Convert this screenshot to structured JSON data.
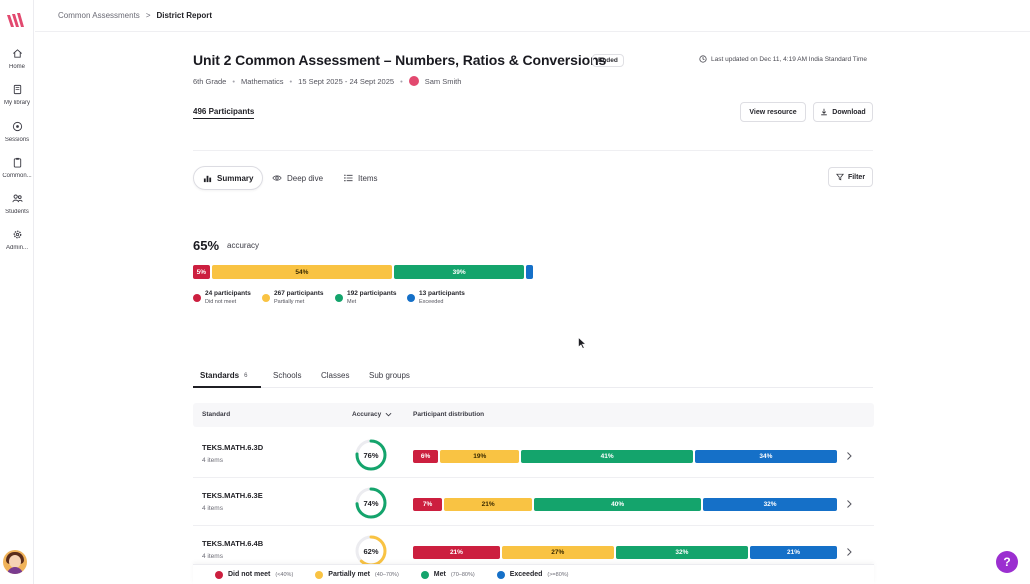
{
  "colors": {
    "did_not_meet": "#cc1f3f",
    "partially_met": "#f9c343",
    "met": "#14a46c",
    "exceeded": "#1570c8",
    "brand": "#e2496f",
    "help": "#9b2fd0"
  },
  "sidebar": {
    "items": [
      {
        "label": "Home",
        "icon": "home-icon"
      },
      {
        "label": "My library",
        "icon": "library-icon"
      },
      {
        "label": "Sessions",
        "icon": "sessions-icon"
      },
      {
        "label": "Common...",
        "icon": "clipboard-icon"
      },
      {
        "label": "Students",
        "icon": "students-icon"
      },
      {
        "label": "Admin...",
        "icon": "gear-icon"
      }
    ]
  },
  "breadcrumb": {
    "parent": "Common Assessments",
    "separator": ">",
    "current": "District Report"
  },
  "header": {
    "title": "Unit 2 Common Assessment – Numbers, Ratios & Conversions",
    "status": "Ended",
    "last_updated": "Last updated on Dec 11, 4:19 AM India Standard Time",
    "grade": "6th Grade",
    "subject": "Mathematics",
    "dates": "15 Sept 2025 - 24 Sept 2025",
    "teacher": "Sam Smith",
    "participants": "496 Participants",
    "view_resource": "View resource",
    "download": "Download"
  },
  "tabs": {
    "summary": "Summary",
    "deep_dive": "Deep dive",
    "items": "Items",
    "filter": "Filter"
  },
  "accuracy": {
    "value": "65%",
    "label": "accuracy",
    "segments": [
      {
        "key": "did_not_meet",
        "pct": 5,
        "label": "5%"
      },
      {
        "key": "partially_met",
        "pct": 54,
        "label": "54%"
      },
      {
        "key": "met",
        "pct": 39,
        "label": "39%"
      },
      {
        "key": "exceeded",
        "pct": 2,
        "label": ""
      }
    ],
    "legend": [
      {
        "key": "did_not_meet",
        "count": "24 participants",
        "name": "Did not meet"
      },
      {
        "key": "partially_met",
        "count": "267 participants",
        "name": "Partially met"
      },
      {
        "key": "met",
        "count": "192 participants",
        "name": "Met"
      },
      {
        "key": "exceeded",
        "count": "13 participants",
        "name": "Exceeded"
      }
    ]
  },
  "breakdown_tabs": {
    "standards": "Standards",
    "standards_count": "6",
    "schools": "Schools",
    "classes": "Classes",
    "sub_groups": "Sub groups"
  },
  "table": {
    "col_standard": "Standard",
    "col_accuracy": "Accuracy",
    "col_distribution": "Participant distribution",
    "rows": [
      {
        "standard": "TEKS.MATH.6.3D",
        "items": "4 items",
        "accuracy": 76,
        "accuracy_label": "76%",
        "ring_color": "#14a46c",
        "segments": [
          {
            "key": "did_not_meet",
            "pct": 6,
            "label": "6%"
          },
          {
            "key": "partially_met",
            "pct": 19,
            "label": "19%"
          },
          {
            "key": "met",
            "pct": 41,
            "label": "41%"
          },
          {
            "key": "exceeded",
            "pct": 34,
            "label": "34%"
          }
        ]
      },
      {
        "standard": "TEKS.MATH.6.3E",
        "items": "4 items",
        "accuracy": 74,
        "accuracy_label": "74%",
        "ring_color": "#14a46c",
        "segments": [
          {
            "key": "did_not_meet",
            "pct": 7,
            "label": "7%"
          },
          {
            "key": "partially_met",
            "pct": 21,
            "label": "21%"
          },
          {
            "key": "met",
            "pct": 40,
            "label": "40%"
          },
          {
            "key": "exceeded",
            "pct": 32,
            "label": "32%"
          }
        ]
      },
      {
        "standard": "TEKS.MATH.6.4B",
        "items": "4 items",
        "accuracy": 62,
        "accuracy_label": "62%",
        "ring_color": "#f9c343",
        "segments": [
          {
            "key": "did_not_meet",
            "pct": 21,
            "label": "21%"
          },
          {
            "key": "partially_met",
            "pct": 27,
            "label": "27%"
          },
          {
            "key": "met",
            "pct": 32,
            "label": "32%"
          },
          {
            "key": "exceeded",
            "pct": 21,
            "label": "21%"
          }
        ]
      }
    ]
  },
  "footer_legend": [
    {
      "key": "did_not_meet",
      "name": "Did not meet",
      "range": "(<40%)"
    },
    {
      "key": "partially_met",
      "name": "Partially met",
      "range": "(40–70%)"
    },
    {
      "key": "met",
      "name": "Met",
      "range": "(70–80%)"
    },
    {
      "key": "exceeded",
      "name": "Exceeded",
      "range": "(>=80%)"
    }
  ],
  "help": "?"
}
